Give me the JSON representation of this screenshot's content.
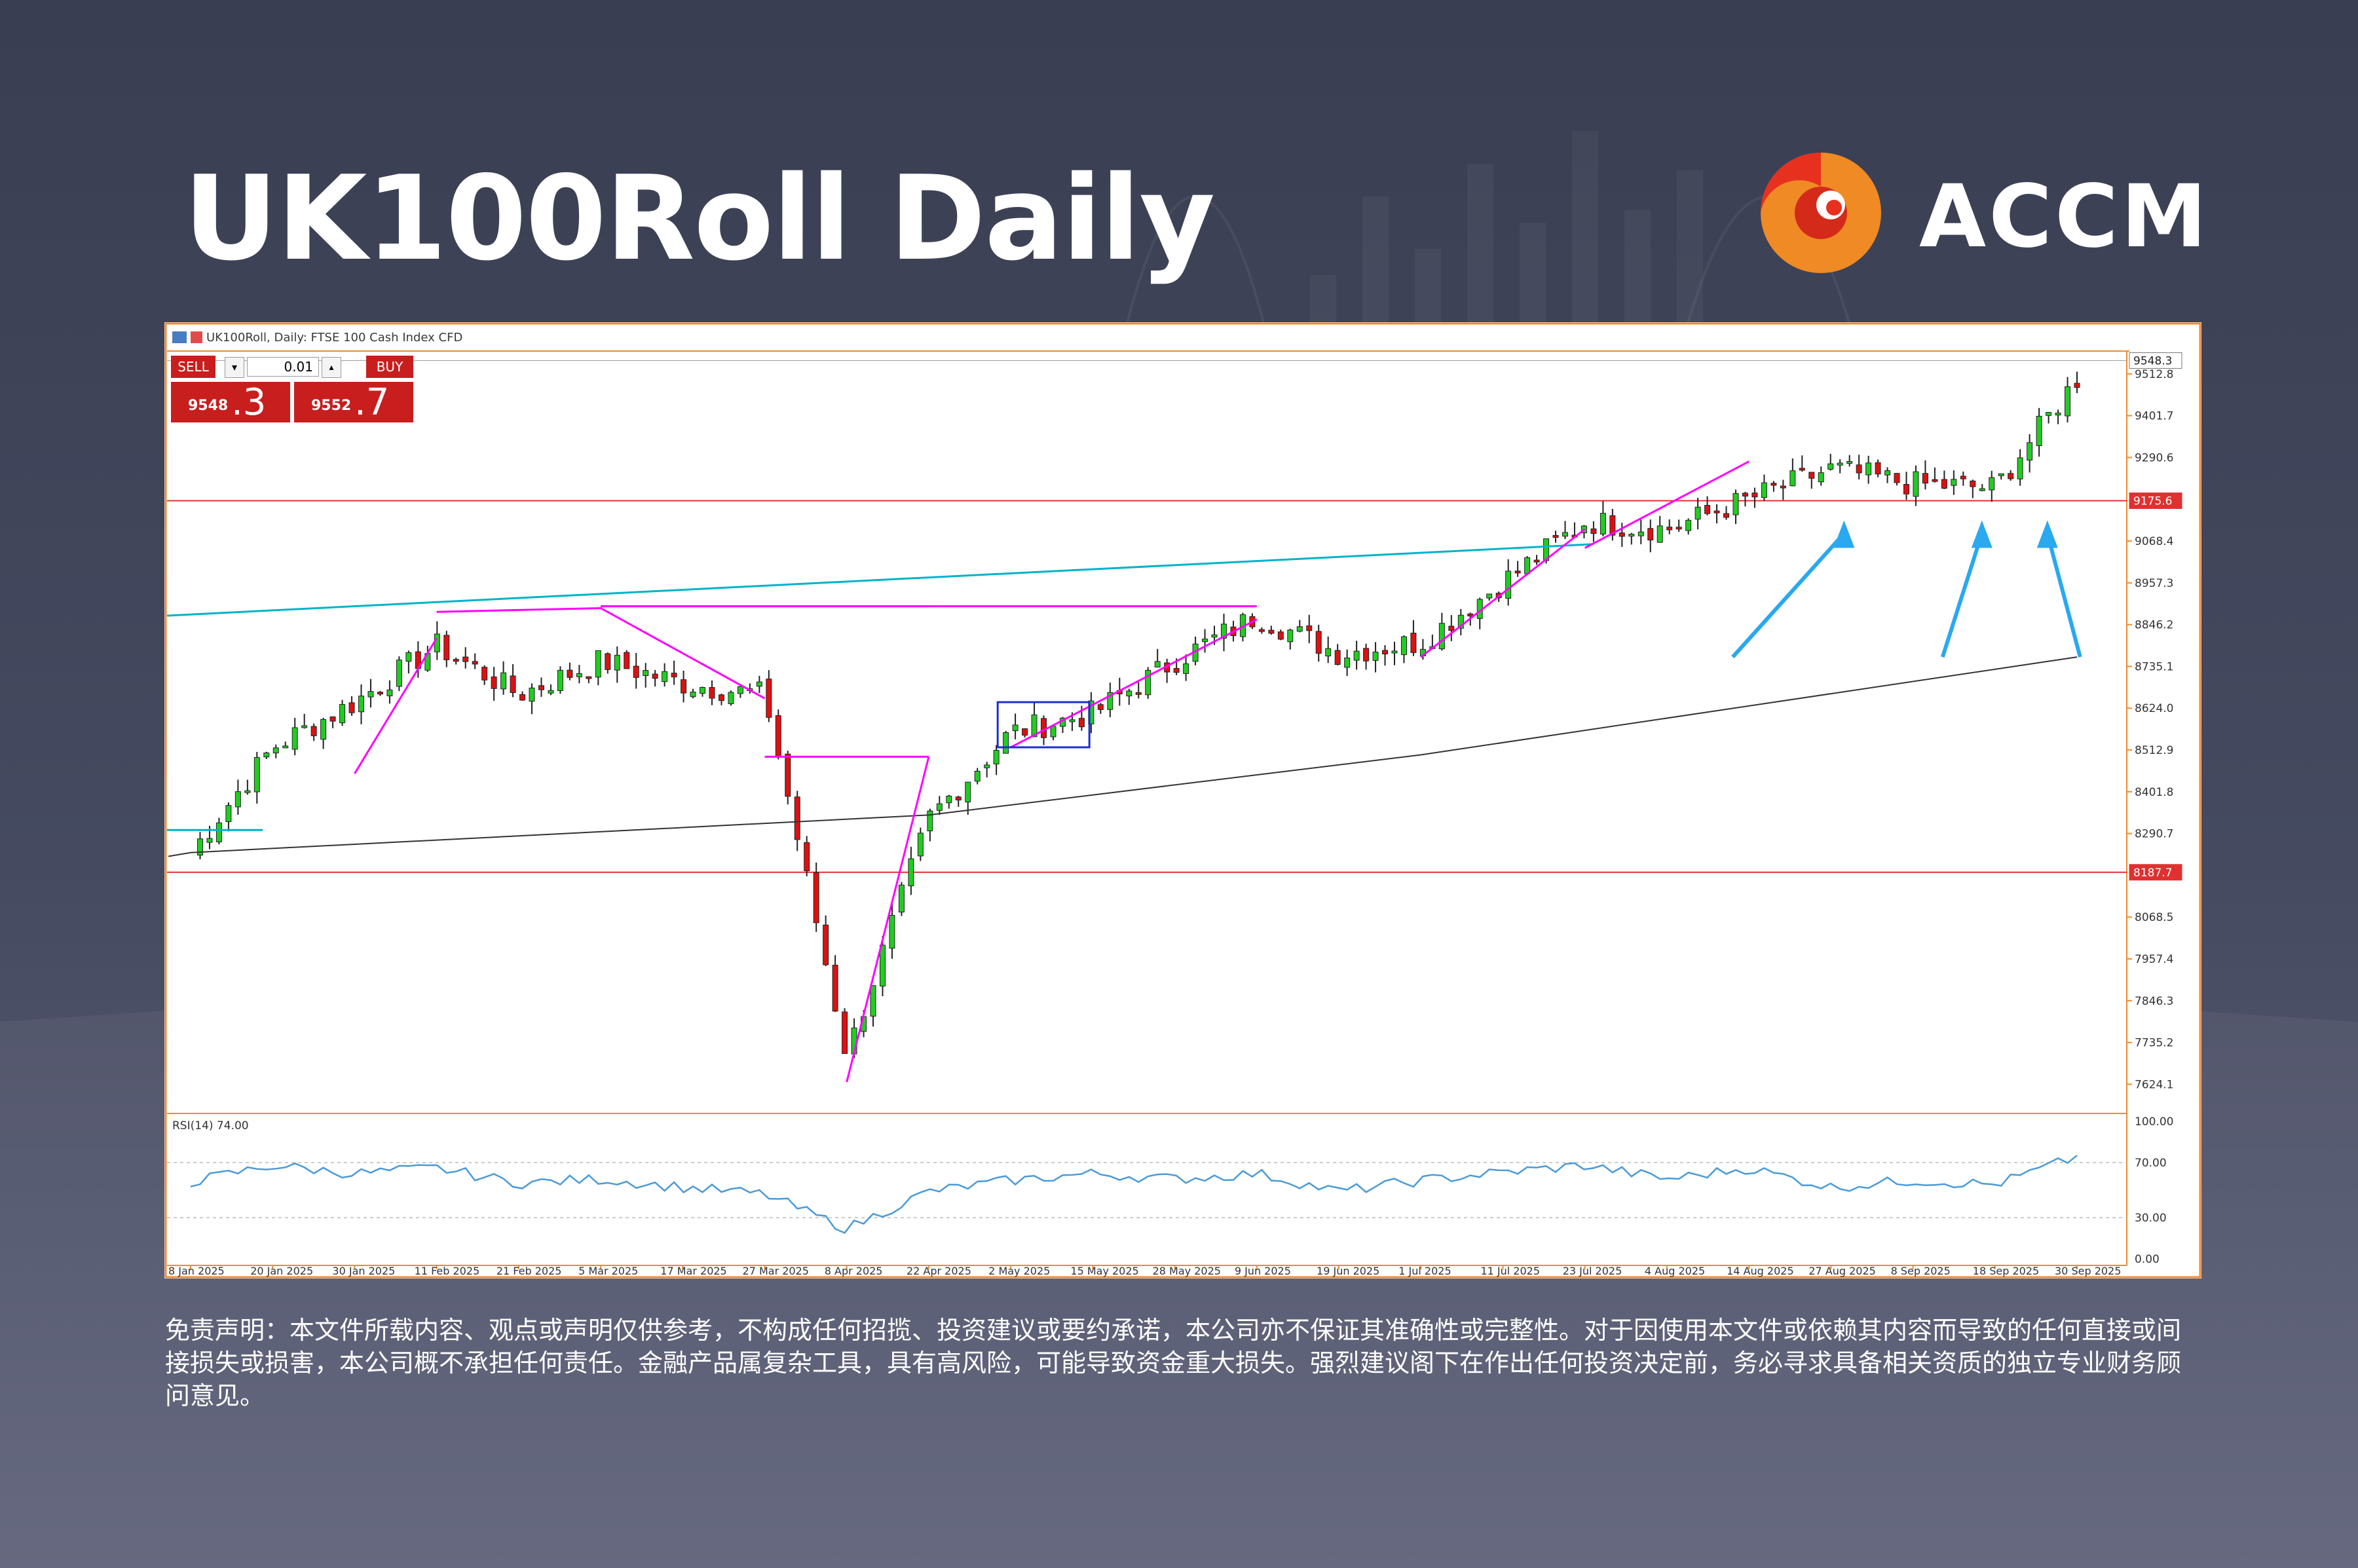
{
  "title": "UK100Roll Daily",
  "brand": {
    "name": "ACCM",
    "logo_icon": "accm-flame-logo-icon"
  },
  "chart_header": "UK100Roll, Daily: FTSE 100 Cash Index CFD",
  "trade_panel": {
    "sell_label": "SELL",
    "buy_label": "BUY",
    "lot_size": "0.01",
    "sell_price_small": "9548",
    "sell_price_big": ".3",
    "buy_price_small": "9552",
    "buy_price_big": ".7"
  },
  "price_axis": {
    "labels": [
      "9512.8",
      "9401.7",
      "9290.6",
      "9068.4",
      "8957.3",
      "8846.2",
      "8735.1",
      "8624.0",
      "8512.9",
      "8401.8",
      "8290.7",
      "8068.5",
      "7957.4",
      "7846.3",
      "7735.2",
      "7624.1"
    ],
    "current_price": "9548.3",
    "resistance_label": "9175.6",
    "support_label": "8187.7"
  },
  "rsi": {
    "label": "RSI(14) 74.00",
    "axis_labels": [
      "100.00",
      "70.00",
      "30.00",
      "0.00"
    ]
  },
  "date_labels": [
    "8 Jan 2025",
    "20 Jan 2025",
    "30 Jan 2025",
    "11 Feb 2025",
    "21 Feb 2025",
    "5 Mar 2025",
    "17 Mar 2025",
    "27 Mar 2025",
    "8 Apr 2025",
    "22 Apr 2025",
    "2 May 2025",
    "15 May 2025",
    "28 May 2025",
    "9 Jun 2025",
    "19 Jun 2025",
    "1 Jul 2025",
    "11 Jul 2025",
    "23 Jul 2025",
    "4 Aug 2025",
    "14 Aug 2025",
    "27 Aug 2025",
    "8 Sep 2025",
    "18 Sep 2025",
    "30 Sep 2025"
  ],
  "chart_data": {
    "type": "candlestick",
    "symbol": "UK100Roll",
    "timeframe": "Daily",
    "ylim": [
      7550,
      9570
    ],
    "last_price": 9548.3,
    "horizontal_levels": [
      9175.6,
      8187.7
    ],
    "anchors": [
      {
        "date": "8 Jan 2025",
        "close": 8240
      },
      {
        "date": "20 Jan 2025",
        "close": 8520
      },
      {
        "date": "30 Jan 2025",
        "close": 8640
      },
      {
        "date": "11 Feb 2025",
        "close": 8790
      },
      {
        "date": "21 Feb 2025",
        "close": 8660
      },
      {
        "date": "5 Mar 2025",
        "close": 8750
      },
      {
        "date": "17 Mar 2025",
        "close": 8690
      },
      {
        "date": "27 Mar 2025",
        "close": 8660
      },
      {
        "date": "8 Apr 2025",
        "close": 7700
      },
      {
        "date": "22 Apr 2025",
        "close": 8330
      },
      {
        "date": "2 May 2025",
        "close": 8560
      },
      {
        "date": "15 May 2025",
        "close": 8610
      },
      {
        "date": "28 May 2025",
        "close": 8750
      },
      {
        "date": "9 Jun 2025",
        "close": 8870
      },
      {
        "date": "19 Jun 2025",
        "close": 8770
      },
      {
        "date": "1 Jul 2025",
        "close": 8800
      },
      {
        "date": "11 Jul 2025",
        "close": 8960
      },
      {
        "date": "23 Jul 2025",
        "close": 9120
      },
      {
        "date": "4 Aug 2025",
        "close": 9100
      },
      {
        "date": "14 Aug 2025",
        "close": 9180
      },
      {
        "date": "27 Aug 2025",
        "close": 9260
      },
      {
        "date": "8 Sep 2025",
        "close": 9220
      },
      {
        "date": "18 Sep 2025",
        "close": 9210
      },
      {
        "date": "30 Sep 2025",
        "close": 9500
      }
    ],
    "rsi_anchors": [
      {
        "date": "8 Jan 2025",
        "value": 56
      },
      {
        "date": "20 Jan 2025",
        "value": 68
      },
      {
        "date": "30 Jan 2025",
        "value": 62
      },
      {
        "date": "11 Feb 2025",
        "value": 66
      },
      {
        "date": "21 Feb 2025",
        "value": 55
      },
      {
        "date": "5 Mar 2025",
        "value": 58
      },
      {
        "date": "17 Mar 2025",
        "value": 52
      },
      {
        "date": "27 Mar 2025",
        "value": 47
      },
      {
        "date": "8 Apr 2025",
        "value": 22
      },
      {
        "date": "22 Apr 2025",
        "value": 49
      },
      {
        "date": "2 May 2025",
        "value": 57
      },
      {
        "date": "15 May 2025",
        "value": 62
      },
      {
        "date": "28 May 2025",
        "value": 58
      },
      {
        "date": "9 Jun 2025",
        "value": 62
      },
      {
        "date": "19 Jun 2025",
        "value": 49
      },
      {
        "date": "1 Jul 2025",
        "value": 57
      },
      {
        "date": "11 Jul 2025",
        "value": 63
      },
      {
        "date": "23 Jul 2025",
        "value": 68
      },
      {
        "date": "4 Aug 2025",
        "value": 58
      },
      {
        "date": "14 Aug 2025",
        "value": 66
      },
      {
        "date": "27 Aug 2025",
        "value": 52
      },
      {
        "date": "8 Sep 2025",
        "value": 57
      },
      {
        "date": "18 Sep 2025",
        "value": 54
      },
      {
        "date": "30 Sep 2025",
        "value": 74
      }
    ],
    "moving_average": {
      "color": "#333333",
      "anchors": [
        {
          "date": "8 Jan 2025",
          "value": 8240
        },
        {
          "date": "22 Apr 2025",
          "value": 8340
        },
        {
          "date": "1 Jul 2025",
          "value": 8500
        },
        {
          "date": "30 Sep 2025",
          "value": 8760
        }
      ]
    },
    "colors": {
      "up": "#22cc22",
      "down": "#dd1111",
      "levels": "#e03030",
      "trend": "#ff00ff",
      "channel": "#00b4c8",
      "rsi": "#4a9ad8",
      "arrows": "#2aa8f0"
    }
  },
  "disclaimer": "免责声明：本文件所载内容、观点或声明仅供参考，不构成任何招揽、投资建议或要约承诺，本公司亦不保证其准确性或完整性。对于因使用本文件或依赖其内容而导致的任何直接或间接损失或损害，本公司概不承担任何责任。金融产品属复杂工具，具有高风险，可能导致资金重大损失。强烈建议阁下在作出任何投资决定前，务必寻求具备相关资质的独立专业财务顾问意见。"
}
